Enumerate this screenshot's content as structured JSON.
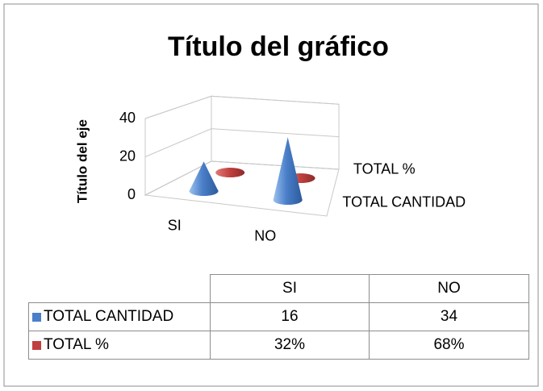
{
  "chart_data": {
    "type": "cone3d",
    "title": "Título del gráfico",
    "y_label": "Título del eje",
    "categories": [
      "SI",
      "NO"
    ],
    "series": [
      {
        "name": "TOTAL CANTIDAD",
        "color": "#4a7fc9",
        "values": [
          16,
          34
        ]
      },
      {
        "name": "TOTAL %",
        "color": "#c0403f",
        "values": [
          0.32,
          0.68
        ],
        "value_labels": [
          "32%",
          "68%"
        ]
      }
    ],
    "ylim": [
      0,
      40
    ],
    "yticks": [
      0,
      20,
      40
    ],
    "grid": true,
    "data_table": true
  }
}
